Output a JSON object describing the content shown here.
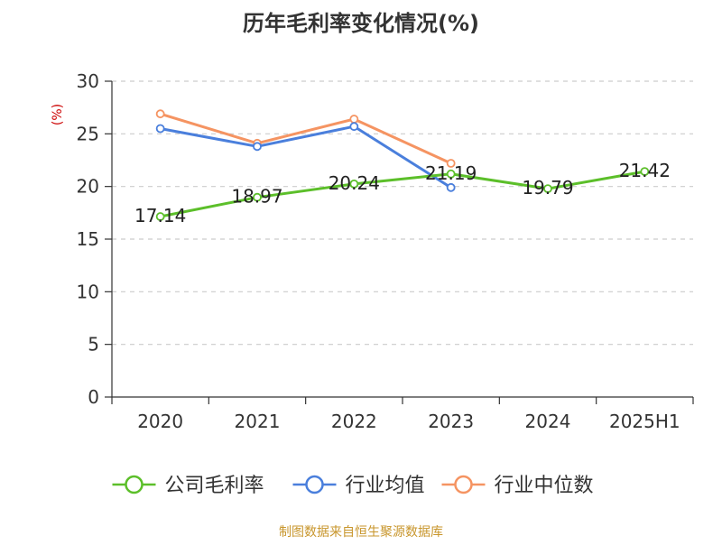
{
  "chart_data": {
    "type": "line",
    "title": "历年毛利率变化情况(%)",
    "ylabel": "(%)",
    "xlabel": "",
    "categories": [
      "2020",
      "2021",
      "2022",
      "2023",
      "2024",
      "2025H1"
    ],
    "ylim": [
      0,
      30
    ],
    "yticks": [
      0,
      5,
      10,
      15,
      20,
      25,
      30
    ],
    "grid": true,
    "legend_position": "bottom",
    "series": [
      {
        "name": "公司毛利率",
        "color": "#5cbf2a",
        "values": [
          17.14,
          18.97,
          20.24,
          21.19,
          19.79,
          21.42
        ],
        "labels": [
          "17.14",
          "18.97",
          "20.24",
          "21.19",
          "19.79",
          "21.42"
        ]
      },
      {
        "name": "行业均值",
        "color": "#4a7fdc",
        "values": [
          25.5,
          23.8,
          25.7,
          19.9,
          null,
          null
        ]
      },
      {
        "name": "行业中位数",
        "color": "#f59462",
        "values": [
          26.9,
          24.1,
          26.4,
          22.2,
          null,
          null
        ]
      }
    ]
  },
  "footer": {
    "source": "制图数据来自恒生聚源数据库"
  },
  "colors": {
    "title": "#333333",
    "ylabel": "#cc0000",
    "source": "#c8962c",
    "grid": "#cccccc",
    "axis": "#333333"
  }
}
